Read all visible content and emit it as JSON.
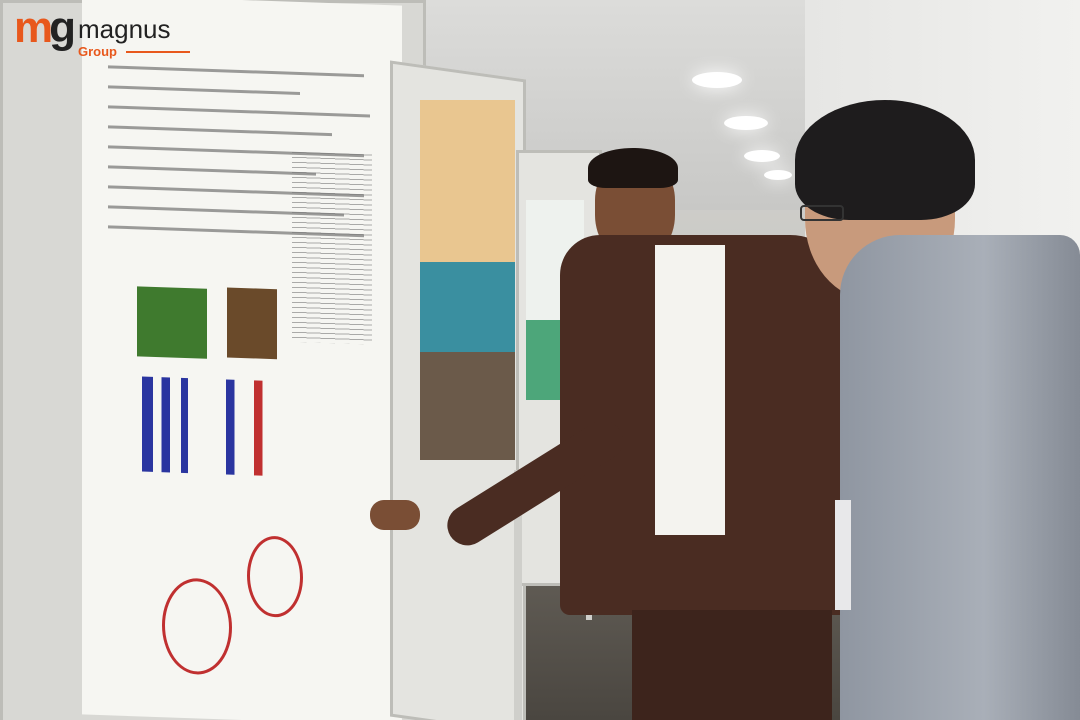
{
  "logo": {
    "text_main": "magnus",
    "text_sub": "Group",
    "monogram": "mg",
    "brand_color": "#e8581c",
    "dark_color": "#222222"
  },
  "colors": {
    "suit_brown": "#4a2c22",
    "suit_grey": "#8f96a1",
    "poster_bg": "#f6f6f2"
  }
}
